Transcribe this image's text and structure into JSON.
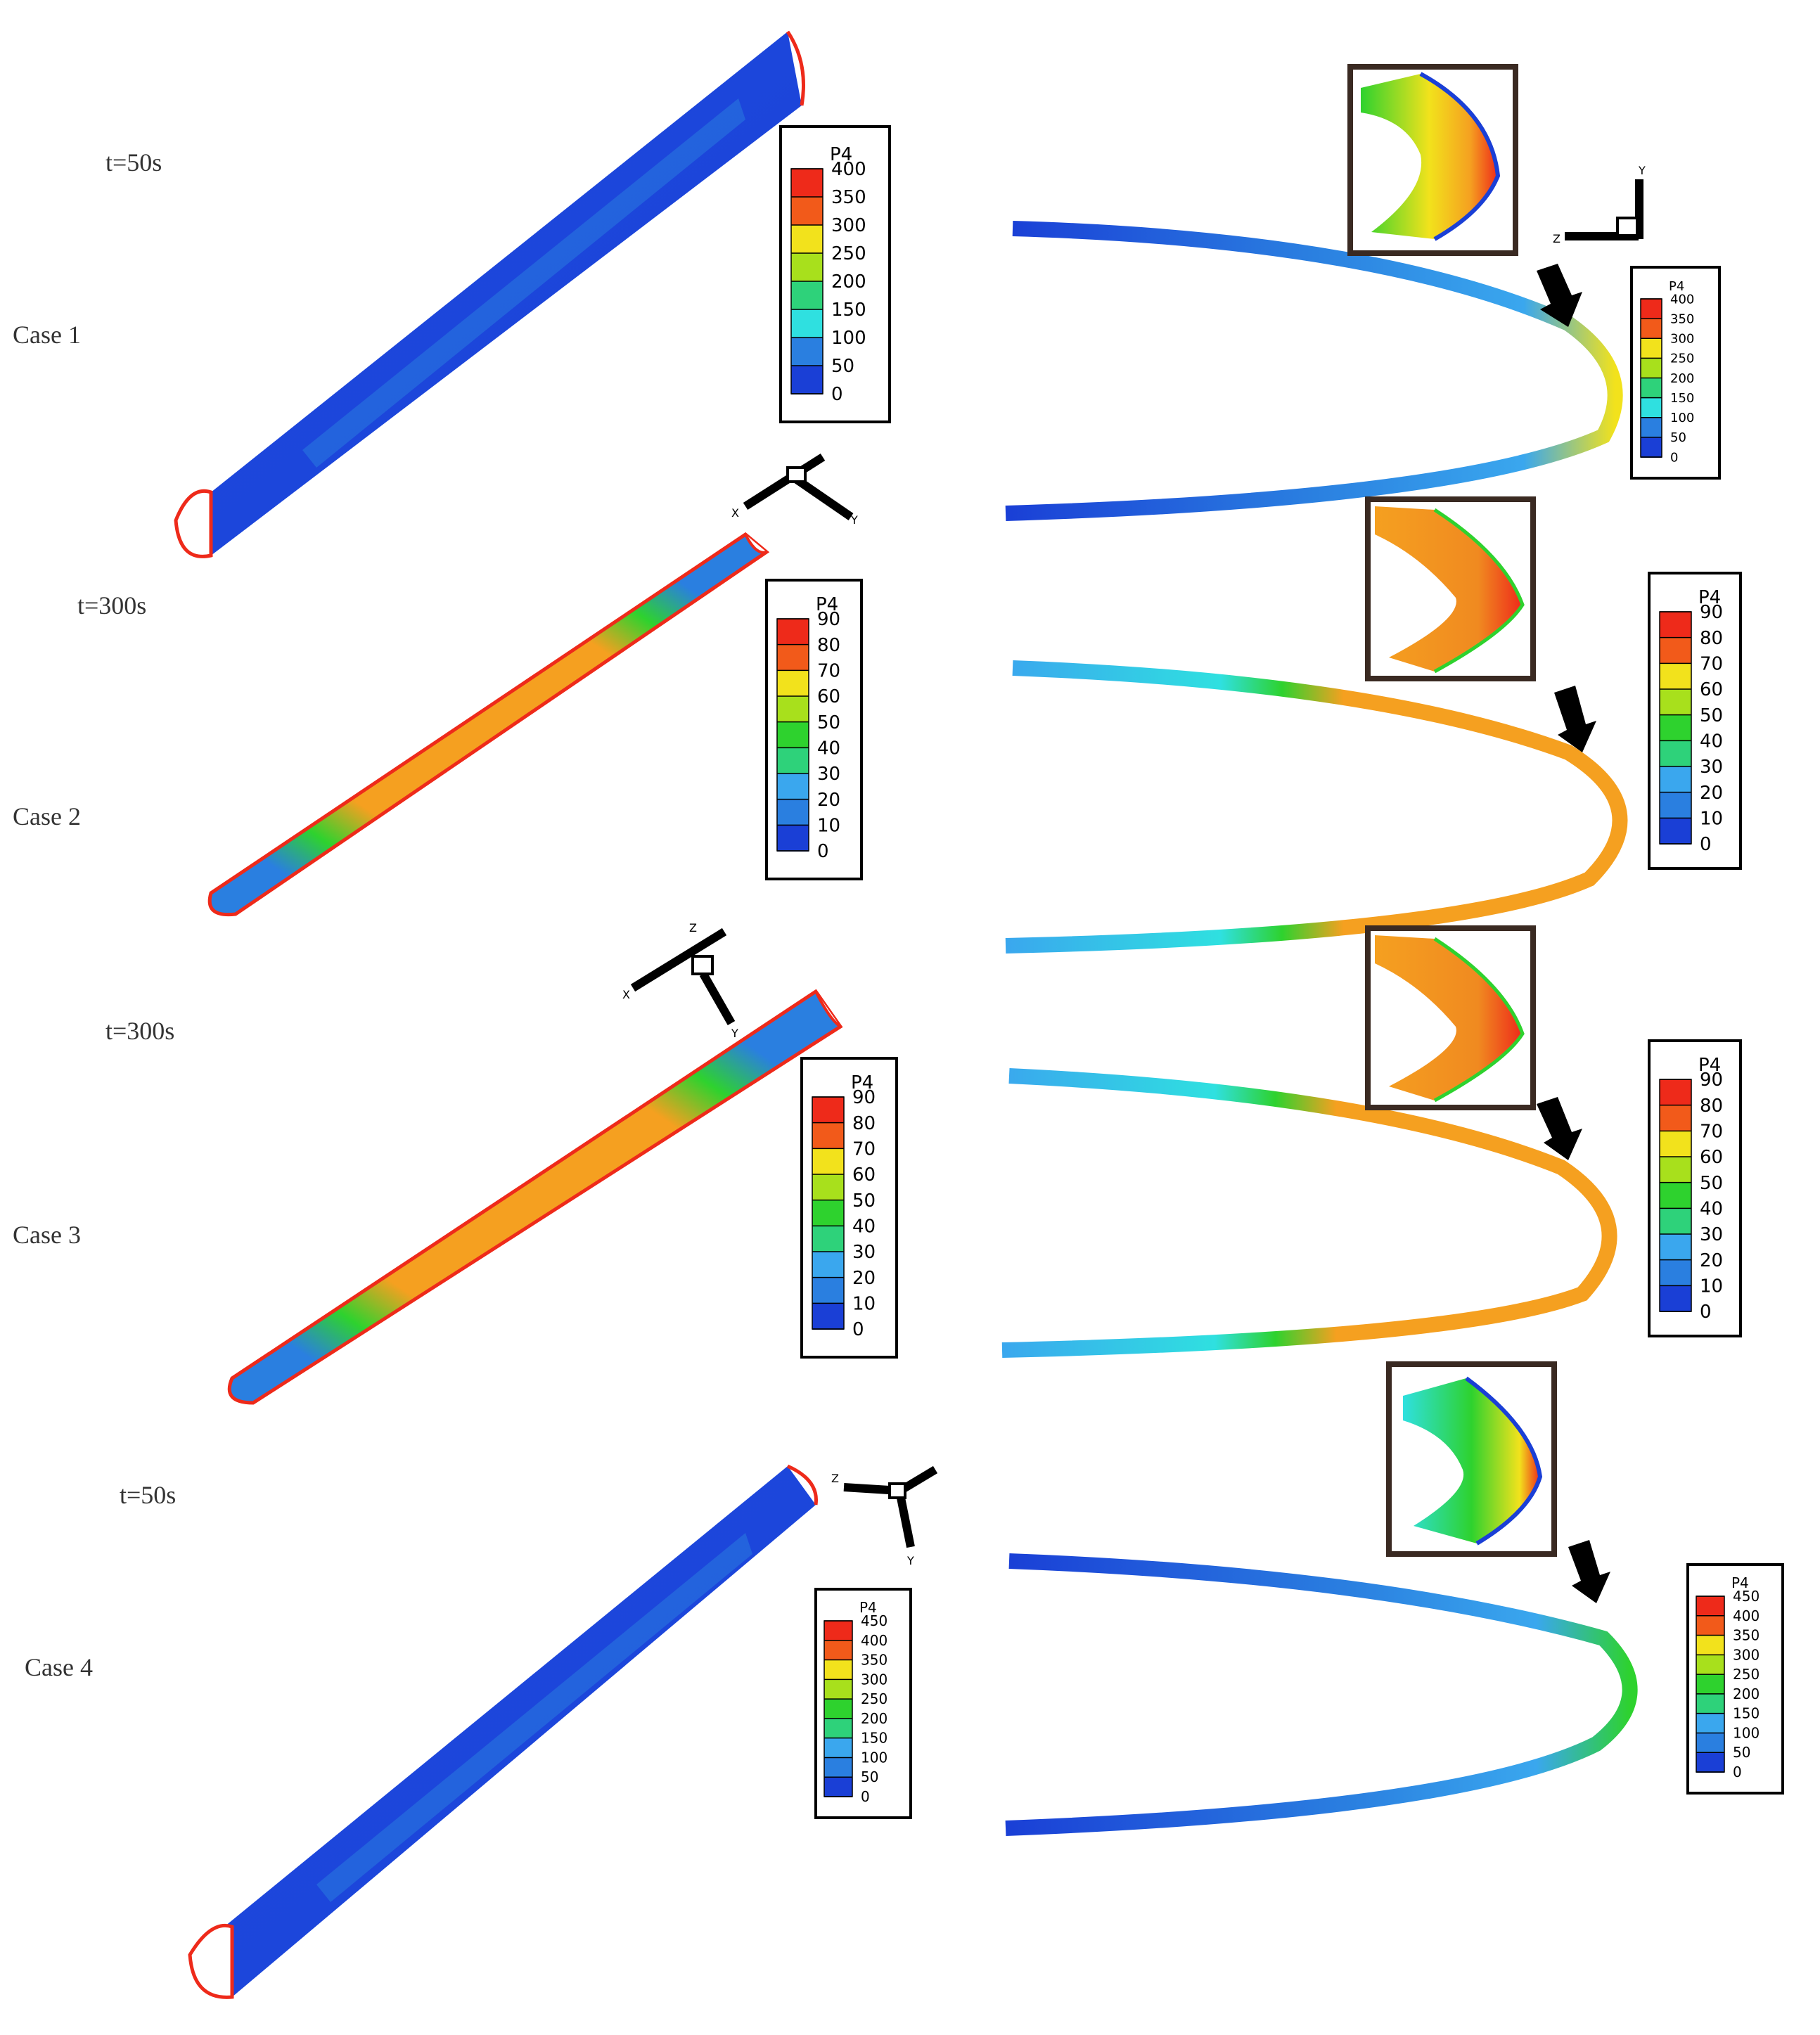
{
  "panels": [
    {
      "case_label": "Case 1",
      "time_label": "t=50s",
      "legend": {
        "title": "P4",
        "ticks": [
          "400",
          "350",
          "300",
          "250",
          "200",
          "150",
          "100",
          "50",
          "0"
        ]
      },
      "legend_small": {
        "title": "P4",
        "ticks": [
          "400",
          "350",
          "300",
          "250",
          "200",
          "150",
          "100",
          "50",
          "0"
        ]
      },
      "triad_axes": [
        "Y",
        "Z"
      ],
      "triad_axes_3d": [
        "X",
        "Y"
      ]
    },
    {
      "case_label": "Case 2",
      "time_label": "t=300s",
      "legend": {
        "title": "P4",
        "ticks": [
          "90",
          "80",
          "70",
          "60",
          "50",
          "40",
          "30",
          "20",
          "10",
          "0"
        ]
      },
      "legend_small": {
        "title": "P4",
        "ticks": [
          "90",
          "80",
          "70",
          "60",
          "50",
          "40",
          "30",
          "20",
          "10",
          "0"
        ]
      },
      "triad_axes_3d": [
        "Z",
        "X",
        "Y"
      ]
    },
    {
      "case_label": "Case 3",
      "time_label": "t=300s",
      "legend": {
        "title": "P4",
        "ticks": [
          "90",
          "80",
          "70",
          "60",
          "50",
          "40",
          "30",
          "20",
          "10",
          "0"
        ]
      },
      "legend_small": {
        "title": "P4",
        "ticks": [
          "90",
          "80",
          "70",
          "60",
          "50",
          "40",
          "30",
          "20",
          "10",
          "0"
        ]
      }
    },
    {
      "case_label": "Case 4",
      "time_label": "t=50s",
      "legend": {
        "title": "P4",
        "ticks": [
          "450",
          "400",
          "350",
          "300",
          "250",
          "200",
          "150",
          "100",
          "50",
          "0"
        ]
      },
      "legend_small": {
        "title": "P4",
        "ticks": [
          "450",
          "400",
          "350",
          "300",
          "250",
          "200",
          "150",
          "100",
          "50",
          "0"
        ]
      },
      "triad_axes_3d": [
        "Z",
        "Y"
      ]
    }
  ],
  "colors": {
    "deep_blue": "#1a3fd6",
    "mid_blue": "#2a7fe0",
    "light_blue": "#3aa7ee",
    "cyan": "#2fe0e0",
    "green": "#2ed22e",
    "yellow": "#f2e21c",
    "orange": "#f5a020",
    "red": "#ee2a1a"
  }
}
